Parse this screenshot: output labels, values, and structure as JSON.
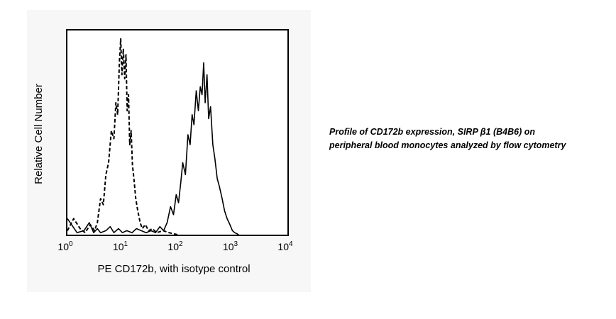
{
  "chart_data": {
    "type": "line",
    "title": "",
    "xlabel": "PE CD172b, with isotype control",
    "ylabel": "Relative Cell Number",
    "x_scale": "log10",
    "xlim": [
      1,
      10000
    ],
    "x_ticks": [
      {
        "base": "10",
        "exp": "0",
        "value": 1
      },
      {
        "base": "10",
        "exp": "1",
        "value": 10
      },
      {
        "base": "10",
        "exp": "2",
        "value": 100
      },
      {
        "base": "10",
        "exp": "3",
        "value": 1000
      },
      {
        "base": "10",
        "exp": "4",
        "value": 10000
      }
    ],
    "ylim": [
      0,
      1
    ],
    "grid": false,
    "legend": "none",
    "series": [
      {
        "style": "dashed",
        "x": [
          1,
          1.3,
          1.7,
          2.1,
          2.6,
          3.1,
          3.5,
          4.0,
          4.5,
          5.0,
          5.6,
          6.3,
          7.0,
          7.6,
          8.2,
          8.8,
          9.3,
          9.8,
          10.4,
          11.0,
          11.6,
          12.2,
          12.9,
          13.6,
          14.4,
          15.2,
          16.2,
          17.5,
          19,
          21,
          23,
          26,
          30,
          35,
          42,
          55,
          70,
          100
        ],
        "y": [
          0.02,
          0.08,
          0.03,
          0.01,
          0.05,
          0.02,
          0.06,
          0.18,
          0.15,
          0.3,
          0.36,
          0.52,
          0.48,
          0.66,
          0.6,
          0.86,
          0.98,
          0.8,
          0.93,
          0.78,
          0.9,
          0.62,
          0.7,
          0.45,
          0.52,
          0.35,
          0.28,
          0.18,
          0.12,
          0.06,
          0.03,
          0.05,
          0.02,
          0.03,
          0.01,
          0.02,
          0.01,
          0
        ]
      },
      {
        "style": "solid",
        "x": [
          1,
          1.5,
          2,
          2.5,
          3,
          3.5,
          4,
          5,
          6,
          7,
          8.5,
          10,
          12,
          15,
          18,
          22,
          27,
          33,
          40,
          48,
          56,
          65,
          75,
          85,
          95,
          105,
          115,
          125,
          140,
          155,
          170,
          185,
          200,
          220,
          240,
          260,
          280,
          300,
          320,
          345,
          370,
          400,
          440,
          480,
          530,
          580,
          650,
          720,
          800,
          900,
          1000,
          1100,
          1300
        ],
        "y": [
          0.08,
          0.01,
          0.02,
          0.06,
          0.01,
          0.03,
          0.01,
          0.02,
          0.04,
          0.01,
          0.03,
          0.01,
          0.02,
          0.01,
          0.03,
          0.02,
          0.01,
          0.02,
          0.01,
          0.04,
          0.02,
          0.06,
          0.14,
          0.1,
          0.2,
          0.16,
          0.26,
          0.36,
          0.3,
          0.5,
          0.45,
          0.6,
          0.55,
          0.72,
          0.62,
          0.74,
          0.7,
          0.86,
          0.66,
          0.8,
          0.58,
          0.64,
          0.45,
          0.38,
          0.28,
          0.24,
          0.18,
          0.12,
          0.08,
          0.05,
          0.02,
          0.01,
          0
        ]
      }
    ]
  },
  "caption": {
    "line1": "Profile of CD172b expression, SIRP β1 (B4B6) on",
    "line2": "peripheral blood monocytes analyzed by flow cytometry"
  }
}
